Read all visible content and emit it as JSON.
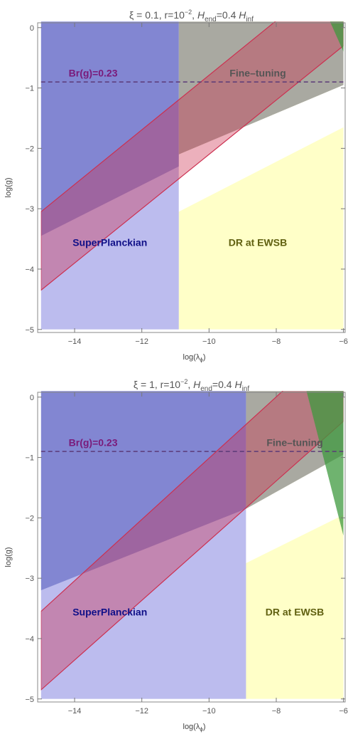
{
  "chart_data": [
    {
      "type": "area",
      "title": "ξ = 0.1, r=10⁻², H_end=0.4 H_inf",
      "title_parts": {
        "xi": "ξ = 0.1, r=10",
        "exp": "−2",
        "mid": ", ",
        "h": "H",
        "end_sub": "end",
        "eq": "=0.4 ",
        "h2": "H",
        "inf_sub": "inf"
      },
      "xlabel": "log(λ_ϕ)",
      "xlabel_parts": {
        "pre": "log(λ",
        "sub": "ϕ",
        "post": ")"
      },
      "ylabel": "log(g)",
      "xlim": [
        -15.1,
        -5.95
      ],
      "ylim": [
        -5.05,
        0.08
      ],
      "xticks": [
        -14,
        -12,
        -10,
        -8,
        -6
      ],
      "xtick_labels": [
        "−14",
        "−12",
        "−10",
        "−8",
        "−6"
      ],
      "yticks": [
        0,
        -1,
        -2,
        -3,
        -4,
        -5
      ],
      "ytick_labels": [
        "0",
        "−1",
        "−2",
        "−3",
        "−4",
        "−5"
      ],
      "regions": {
        "superplanckian_boundary_x": -10.9,
        "dr_upper_edge": [
          [
            -10.9,
            -3.05
          ],
          [
            -6.0,
            -1.65
          ]
        ],
        "finetuning_lower_edge": [
          [
            -10.9,
            -2.1
          ],
          [
            -6.0,
            -0.95
          ]
        ],
        "blue_band_top": [
          [
            -15.0,
            -3.45
          ],
          [
            -10.9,
            -2.3
          ]
        ],
        "red_band_upper": [
          [
            -15.0,
            -3.05
          ],
          [
            -6.0,
            1.02
          ]
        ],
        "red_band_lower": [
          [
            -15.0,
            -4.35
          ],
          [
            -6.0,
            -0.3
          ]
        ],
        "green_edges": [
          [
            -6.4,
            0.1
          ],
          [
            -6.0,
            0.1
          ],
          [
            -6.0,
            -0.4
          ]
        ]
      },
      "br_line_y": -0.9,
      "labels": {
        "br": "Br(g)=0.23",
        "finetuning": "Fine–tuning",
        "superplanckian": "SuperPlanckian",
        "dr": "DR at EWSB"
      },
      "label_positions": {
        "br": [
          -13.45,
          -0.81
        ],
        "finetuning": [
          -8.55,
          -0.81
        ],
        "superplanckian": [
          -12.95,
          -3.62
        ],
        "dr": [
          -8.55,
          -3.62
        ]
      }
    },
    {
      "type": "area",
      "title": "ξ = 1, r=10⁻², H_end=0.4 H_inf",
      "title_parts": {
        "xi": "ξ = 1, r=10",
        "exp": "−2",
        "mid": ", ",
        "h": "H",
        "end_sub": "end",
        "eq": "=0.4 ",
        "h2": "H",
        "inf_sub": "inf"
      },
      "xlabel": "log(λ_ϕ)",
      "xlabel_parts": {
        "pre": "log(λ",
        "sub": "ϕ",
        "post": ")"
      },
      "ylabel": "log(g)",
      "xlim": [
        -15.1,
        -5.95
      ],
      "ylim": [
        -5.05,
        0.08
      ],
      "xticks": [
        -14,
        -12,
        -10,
        -8,
        -6
      ],
      "xtick_labels": [
        "−14",
        "−12",
        "−10",
        "−8",
        "−6"
      ],
      "yticks": [
        0,
        -1,
        -2,
        -3,
        -4,
        -5
      ],
      "ytick_labels": [
        "0",
        "−1",
        "−2",
        "−3",
        "−4",
        "−5"
      ],
      "regions": {
        "superplanckian_boundary_x": -8.9,
        "dr_upper_edge": [
          [
            -8.9,
            -2.75
          ],
          [
            -6.0,
            -1.95
          ]
        ],
        "finetuning_lower_edge": [
          [
            -8.9,
            -1.85
          ],
          [
            -6.0,
            -0.95
          ]
        ],
        "blue_band_top": [
          [
            -15.0,
            -3.2
          ],
          [
            -8.9,
            -1.85
          ]
        ],
        "red_band_upper": [
          [
            -15.0,
            -3.55
          ],
          [
            -6.0,
            1.02
          ]
        ],
        "red_band_lower": [
          [
            -15.0,
            -4.85
          ],
          [
            -6.0,
            -0.4
          ]
        ],
        "green_edges": [
          [
            -7.1,
            0.1
          ],
          [
            -6.0,
            0.1
          ],
          [
            -6.0,
            -2.3
          ]
        ]
      },
      "br_line_y": -0.9,
      "labels": {
        "br": "Br(g)=0.23",
        "finetuning": "Fine–tuning",
        "superplanckian": "SuperPlanckian",
        "dr": "DR at EWSB"
      },
      "label_positions": {
        "br": [
          -13.45,
          -0.81
        ],
        "finetuning": [
          -7.45,
          -0.81
        ],
        "superplanckian": [
          -12.95,
          -3.62
        ],
        "dr": [
          -7.45,
          -3.62
        ]
      }
    }
  ],
  "colors": {
    "superplanckian": "#7b7fd0",
    "superplanckian_light": "#c2c2e2",
    "blue_band": "#b8b8f8",
    "dr": "#ffffc8",
    "finetuning": "#9a9a9a",
    "white": "#ffffff",
    "red_band": "#cc3050",
    "green": "#3f9a3f",
    "br_line": "#5b3a78",
    "br_text": "#7a1a7a",
    "finetuning_text": "#555555",
    "superplanckian_text": "#101088",
    "dr_text": "#606010"
  }
}
